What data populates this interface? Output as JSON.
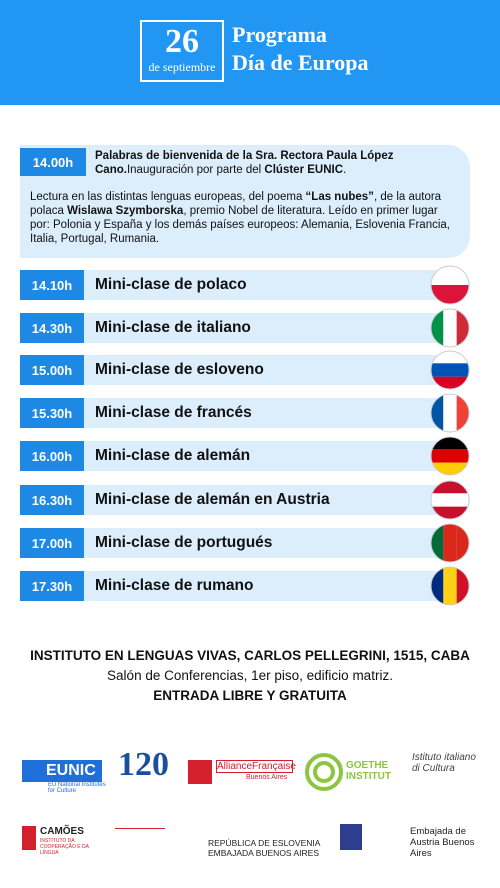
{
  "header": {
    "day": "26",
    "month": "de septiembre",
    "title_line1": "Programa",
    "title_line2": "Día de Europa"
  },
  "opening": {
    "time": "14.00h",
    "intro": [
      {
        "text": "Palabras de bienvenida de la Sra. Rectora Paula López Cano.",
        "bold": true
      },
      {
        "text": "Inauguración por parte del ",
        "bold": false
      },
      {
        "text": "Clúster EUNIC",
        "bold": true
      },
      {
        "text": ".",
        "bold": false
      }
    ],
    "reading": [
      {
        "text": "Lectura en las distintas lenguas europeas, del poema ",
        "bold": false
      },
      {
        "text": "“Las nubes”",
        "bold": true
      },
      {
        "text": ", de la autora polaca ",
        "bold": false
      },
      {
        "text": "Wislawa Szymborska",
        "bold": true
      },
      {
        "text": ", premio Nobel de literatura. Leído en primer lugar por: Polonia y España y los demás países europeos: Alemania, Eslovenia Francia, Italia, Portugal, Rumania.",
        "bold": false
      }
    ]
  },
  "schedule": [
    {
      "time": "14.10h",
      "label": "Mini-clase de polaco"
    },
    {
      "time": "14.30h",
      "label": "Mini-clase de italiano"
    },
    {
      "time": "15.00h",
      "label": "Mini-clase de esloveno"
    },
    {
      "time": "15.30h",
      "label": "Mini-clase de francés"
    },
    {
      "time": "16.00h",
      "label": "Mini-clase de alemán"
    },
    {
      "time": "16.30h",
      "label": "Mini-clase de alemán en Austria"
    },
    {
      "time": "17.00h",
      "label": "Mini-clase de portugués"
    },
    {
      "time": "17.30h",
      "label": "Mini-clase de rumano"
    }
  ],
  "venue": {
    "address": "INSTITUTO EN LENGUAS VIVAS, CARLOS PELLEGRINI, 1515, CABA",
    "room": "Salón de Conferencias, 1er piso, edificio matriz.",
    "entry": "ENTRADA LIBRE Y GRATUITA"
  },
  "logos": {
    "eunic": "EUNIC",
    "eunic_sub": "EU National Institutes for Culture",
    "anniv": "120",
    "alliance": "AllianceFrançaise",
    "alliance_city": "Buenos Aires",
    "goethe": "GOETHE INSTITUT",
    "italiano": "Istituto italiano di Cultura",
    "camoes": "CAMÕES",
    "camoes_sub": "INSTITUTO DA COOPERAÇÃO E DA LÍNGUA",
    "slovenia": "REPÚBLICA DE ESLOVENIA",
    "slovenia_sub": "EMBAJADA BUENOS AIRES",
    "austria": "Embajada de Austria Buenos Aires"
  }
}
